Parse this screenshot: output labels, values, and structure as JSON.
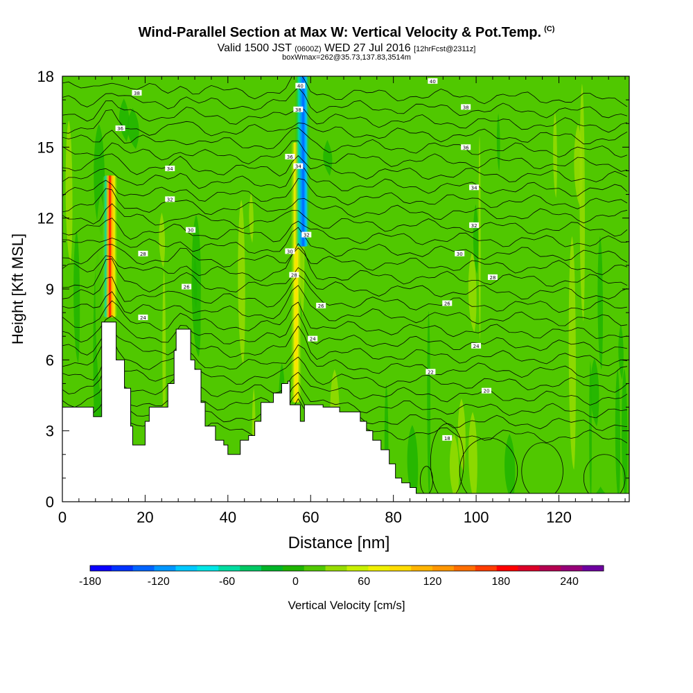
{
  "header": {
    "title": "Wind-Parallel Section at Max W: Vertical Velocity & Pot.Temp.",
    "title_mark": "(C)",
    "valid_prefix": "Valid 1500 JST",
    "valid_utc": "(0600Z)",
    "valid_date": "WED 27 Jul 2016",
    "forecast": "[12hrFcst@2311z]",
    "boxwmax": "boxWmax=262@35.73,137.83,3514m"
  },
  "chart_data": {
    "type": "heatmap",
    "title": "Wind-Parallel Section at Max W: Vertical Velocity & Pot.Temp.",
    "xlabel": "Distance [nm]",
    "ylabel": "Height [Kft MSL]",
    "xlim": [
      0,
      137
    ],
    "ylim": [
      0,
      18
    ],
    "xticks": [
      0,
      20,
      40,
      60,
      80,
      100,
      120
    ],
    "xtick_labels": [
      "0",
      "20",
      "40",
      "60",
      "80",
      "100",
      "120"
    ],
    "yticks": [
      0,
      3,
      6,
      9,
      12,
      15,
      18
    ],
    "ytick_labels": [
      "0",
      "3",
      "6",
      "9",
      "12",
      "15",
      "18"
    ],
    "grid": false,
    "terrain_top_kft": [
      [
        0,
        4.0
      ],
      [
        6,
        4.0
      ],
      [
        7.5,
        3.6
      ],
      [
        9.5,
        7.6
      ],
      [
        12.5,
        7.6
      ],
      [
        13,
        6.0
      ],
      [
        15,
        4.8
      ],
      [
        16.5,
        3.2
      ],
      [
        17,
        2.4
      ],
      [
        19,
        2.4
      ],
      [
        20,
        3.4
      ],
      [
        21,
        4.0
      ],
      [
        24,
        4.0
      ],
      [
        25.5,
        5.0
      ],
      [
        27,
        6.4
      ],
      [
        27.5,
        7.3
      ],
      [
        30,
        7.3
      ],
      [
        31,
        6.0
      ],
      [
        32,
        5.6
      ],
      [
        33.5,
        4.2
      ],
      [
        34.5,
        3.2
      ],
      [
        37,
        2.6
      ],
      [
        39,
        2.4
      ],
      [
        40,
        2.0
      ],
      [
        42,
        2.0
      ],
      [
        43,
        2.6
      ],
      [
        45,
        2.8
      ],
      [
        46.5,
        3.4
      ],
      [
        48,
        4.2
      ],
      [
        51,
        4.6
      ],
      [
        53,
        5.0
      ],
      [
        54.5,
        5.1
      ],
      [
        55,
        4.1
      ],
      [
        57,
        4.1
      ],
      [
        57.5,
        3.4
      ],
      [
        58,
        3.4
      ],
      [
        58.5,
        4.1
      ],
      [
        60,
        4.1
      ],
      [
        63,
        4.0
      ],
      [
        67,
        3.8
      ],
      [
        71.5,
        3.8
      ],
      [
        72,
        3.4
      ],
      [
        73.5,
        3.0
      ],
      [
        75,
        2.6
      ],
      [
        77,
        2.2
      ],
      [
        79,
        1.6
      ],
      [
        80.5,
        1.0
      ],
      [
        82,
        0.8
      ],
      [
        84,
        0.6
      ],
      [
        85.5,
        0.35
      ],
      [
        137,
        0.35
      ]
    ],
    "contour_labels": [
      {
        "x": 18,
        "y": 17.3,
        "text": "38"
      },
      {
        "x": 14,
        "y": 15.8,
        "text": "36"
      },
      {
        "x": 26,
        "y": 14.1,
        "text": "34"
      },
      {
        "x": 26,
        "y": 12.8,
        "text": "32"
      },
      {
        "x": 31,
        "y": 11.5,
        "text": "30"
      },
      {
        "x": 19.5,
        "y": 10.5,
        "text": "28"
      },
      {
        "x": 30,
        "y": 9.1,
        "text": "26"
      },
      {
        "x": 19.5,
        "y": 7.8,
        "text": "24"
      },
      {
        "x": 57.5,
        "y": 17.6,
        "text": "40"
      },
      {
        "x": 57,
        "y": 16.6,
        "text": "38"
      },
      {
        "x": 55,
        "y": 14.6,
        "text": "36"
      },
      {
        "x": 57,
        "y": 14.2,
        "text": "34"
      },
      {
        "x": 59,
        "y": 11.3,
        "text": "32"
      },
      {
        "x": 55,
        "y": 10.6,
        "text": "30"
      },
      {
        "x": 56,
        "y": 9.6,
        "text": "28"
      },
      {
        "x": 62.5,
        "y": 8.3,
        "text": "26"
      },
      {
        "x": 60.5,
        "y": 6.9,
        "text": "24"
      },
      {
        "x": 89.5,
        "y": 17.8,
        "text": "40"
      },
      {
        "x": 97.5,
        "y": 16.7,
        "text": "38"
      },
      {
        "x": 97.5,
        "y": 15,
        "text": "36"
      },
      {
        "x": 99.5,
        "y": 13.3,
        "text": "34"
      },
      {
        "x": 99.5,
        "y": 11.7,
        "text": "32"
      },
      {
        "x": 96,
        "y": 10.5,
        "text": "30"
      },
      {
        "x": 104,
        "y": 9.5,
        "text": "28"
      },
      {
        "x": 93,
        "y": 8.4,
        "text": "26"
      },
      {
        "x": 100,
        "y": 6.6,
        "text": "24"
      },
      {
        "x": 89,
        "y": 5.5,
        "text": "22"
      },
      {
        "x": 102.5,
        "y": 4.7,
        "text": "20"
      },
      {
        "x": 93,
        "y": 2.7,
        "text": "18"
      }
    ],
    "colorbar": {
      "label": "Vertical Velocity [cm/s]",
      "min": -180,
      "max": 270,
      "step": 20,
      "ticks": [
        -180,
        -120,
        -60,
        0,
        60,
        120,
        180,
        240
      ],
      "tick_labels": [
        "-180",
        "-120",
        "-60",
        "0",
        "60",
        "120",
        "180",
        "240"
      ],
      "colors": [
        "#0a00ff",
        "#0032ff",
        "#0064ff",
        "#0096ff",
        "#00c8ff",
        "#00e6e6",
        "#00dca0",
        "#00c864",
        "#00b428",
        "#1eb400",
        "#50c800",
        "#96dc00",
        "#c8f000",
        "#f0f000",
        "#ffdc00",
        "#ffb400",
        "#ff9600",
        "#ff6e00",
        "#ff3c00",
        "#ff0000",
        "#dc0028",
        "#b40050",
        "#960078",
        "#6e00a0"
      ]
    },
    "updraft_cores": [
      {
        "x": 11.5,
        "base": 7.8,
        "top": 13.8,
        "peak": 210,
        "note": "left updraft column"
      },
      {
        "x": 56.5,
        "base": 4.2,
        "top": 15.2,
        "peak": 70,
        "note": "central updraft column"
      }
    ],
    "downdraft_cores": [
      {
        "x": 58,
        "base": 10.8,
        "top": 18,
        "peak": -160,
        "note": "central downdraft column"
      }
    ]
  }
}
